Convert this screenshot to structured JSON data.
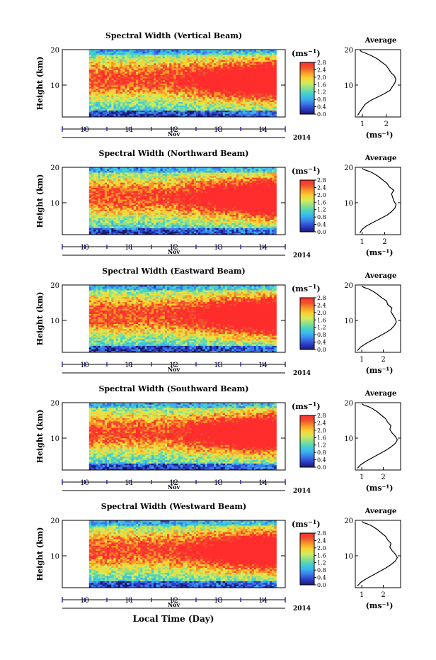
{
  "figure": {
    "xlabel": "Local Time (Day)",
    "month_label": "Nov",
    "year_label": "2014",
    "ylabel": "Height (km)",
    "unit": "(ms",
    "unit_exp": "−1",
    "avg_title": "Average"
  },
  "colors": {
    "scale": [
      "#1a1a6e",
      "#2d3cc8",
      "#3a78e8",
      "#3ab4f0",
      "#46d2c8",
      "#8ce08c",
      "#d2eb5a",
      "#fad232",
      "#fa9628",
      "#f0502d",
      "#ff2d2d"
    ],
    "axis_time": "#2f2fa0"
  },
  "chart_data": [
    {
      "type": "heatmap",
      "title": "Spectral Width (Vertical Beam)",
      "x_ticks": [
        10,
        11,
        12,
        13,
        14
      ],
      "xlim": [
        9.5,
        14.5
      ],
      "data_start": 10.1,
      "data_end": 14.3,
      "y_ticks": [
        10,
        20
      ],
      "ylim": [
        1,
        20
      ],
      "colorbar_ticks": [
        "0.0",
        "0.4",
        "0.8",
        "1.2",
        "1.6",
        "2.0",
        "2.4",
        "2.8"
      ],
      "colorbar_range": [
        0,
        2.8
      ],
      "grid": false
    },
    {
      "type": "line",
      "title": "Average",
      "x_ticks": [
        1,
        2
      ],
      "xlim": [
        0.7,
        2.6
      ],
      "xlabel": "(ms⁻¹)",
      "y_ticks": [
        10,
        20
      ],
      "ylim": [
        1,
        20
      ],
      "series": [
        {
          "x": [
            0.8,
            0.9,
            1.0,
            1.1,
            1.3,
            1.6,
            1.9,
            2.15,
            2.25,
            2.35,
            2.4,
            2.35,
            2.2,
            2.1,
            2.0,
            1.8,
            1.6,
            1.4,
            1.2,
            1.05,
            0.95,
            0.9
          ],
          "y": [
            1.5,
            2.5,
            3.5,
            4.5,
            5.5,
            6.5,
            7.5,
            8.5,
            9.5,
            10.5,
            11.5,
            12.5,
            13.5,
            14.5,
            15.5,
            16.5,
            17.5,
            18.2,
            18.8,
            19.2,
            19.5,
            19.8
          ]
        }
      ]
    },
    {
      "type": "heatmap",
      "title": "Spectral Width (Northward Beam)",
      "x_ticks": [
        10,
        11,
        12,
        13,
        14
      ],
      "xlim": [
        9.5,
        14.5
      ],
      "data_start": 10.1,
      "data_end": 14.3,
      "y_ticks": [
        10,
        20
      ],
      "ylim": [
        1,
        20
      ],
      "colorbar_ticks": [
        "0.0",
        "0.4",
        "0.8",
        "1.2",
        "1.6",
        "2.0",
        "2.4",
        "2.8"
      ],
      "colorbar_range": [
        0,
        2.8
      ],
      "grid": false
    },
    {
      "type": "line",
      "title": "Average",
      "x_ticks": [
        1,
        2
      ],
      "xlim": [
        0.7,
        2.7
      ],
      "xlabel": "(ms⁻¹)",
      "y_ticks": [
        10,
        20
      ],
      "ylim": [
        1,
        20
      ],
      "series": [
        {
          "x": [
            0.9,
            1.0,
            1.2,
            1.5,
            1.8,
            2.1,
            2.3,
            2.45,
            2.5,
            2.4,
            2.35,
            2.3,
            2.4,
            2.2,
            2.1,
            1.9,
            1.7,
            1.5,
            1.3,
            1.1,
            1.0
          ],
          "y": [
            1.5,
            2.5,
            3.5,
            4.5,
            5.5,
            6.5,
            7.5,
            8.5,
            9.5,
            10.5,
            11.5,
            12.5,
            13.5,
            14.5,
            15.5,
            16.5,
            17.5,
            18.3,
            18.9,
            19.3,
            19.7
          ]
        }
      ]
    },
    {
      "type": "heatmap",
      "title": "Spectral Width (Eastward Beam)",
      "x_ticks": [
        10,
        11,
        12,
        13,
        14
      ],
      "xlim": [
        9.5,
        14.5
      ],
      "data_start": 10.1,
      "data_end": 14.3,
      "y_ticks": [
        10,
        20
      ],
      "ylim": [
        1,
        20
      ],
      "colorbar_ticks": [
        "0.0",
        "0.4",
        "0.8",
        "1.2",
        "1.6",
        "2.0",
        "2.4",
        "2.8"
      ],
      "colorbar_range": [
        0,
        2.8
      ],
      "grid": false
    },
    {
      "type": "line",
      "title": "Average",
      "x_ticks": [
        1,
        2
      ],
      "xlim": [
        0.7,
        2.8
      ],
      "xlabel": "(ms⁻¹)",
      "y_ticks": [
        10,
        20
      ],
      "ylim": [
        1,
        20
      ],
      "series": [
        {
          "x": [
            0.8,
            0.95,
            1.2,
            1.5,
            1.8,
            2.1,
            2.35,
            2.5,
            2.6,
            2.55,
            2.45,
            2.35,
            2.4,
            2.2,
            2.15,
            1.9,
            1.7,
            1.5,
            1.3,
            1.1,
            1.0
          ],
          "y": [
            1.5,
            2.5,
            3.5,
            4.5,
            5.5,
            6.5,
            7.5,
            8.5,
            9.5,
            10.5,
            11.5,
            12.5,
            13.5,
            14.5,
            15.5,
            16.5,
            17.5,
            18.3,
            18.9,
            19.3,
            19.7
          ]
        }
      ]
    },
    {
      "type": "heatmap",
      "title": "Spectral Width (Southward Beam)",
      "x_ticks": [
        10,
        11,
        12,
        13,
        14
      ],
      "xlim": [
        9.5,
        14.5
      ],
      "data_start": 10.1,
      "data_end": 14.3,
      "y_ticks": [
        10,
        20
      ],
      "ylim": [
        1,
        20
      ],
      "colorbar_ticks": [
        "0.0",
        "0.4",
        "0.8",
        "1.2",
        "1.6",
        "2.0",
        "2.4",
        "2.8"
      ],
      "colorbar_range": [
        0,
        2.8
      ],
      "grid": false
    },
    {
      "type": "line",
      "title": "Average",
      "x_ticks": [
        1,
        2
      ],
      "xlim": [
        0.7,
        2.8
      ],
      "xlabel": "(ms⁻¹)",
      "y_ticks": [
        10,
        20
      ],
      "ylim": [
        1,
        20
      ],
      "series": [
        {
          "x": [
            0.8,
            0.95,
            1.2,
            1.5,
            1.8,
            2.1,
            2.35,
            2.55,
            2.65,
            2.55,
            2.4,
            2.3,
            2.35,
            2.2,
            2.1,
            1.9,
            1.7,
            1.5,
            1.3,
            1.1,
            1.0
          ],
          "y": [
            1.5,
            2.5,
            3.5,
            4.5,
            5.5,
            6.5,
            7.5,
            8.5,
            9.5,
            10.5,
            11.5,
            12.5,
            13.5,
            14.5,
            15.5,
            16.5,
            17.5,
            18.3,
            18.9,
            19.3,
            19.7
          ]
        }
      ]
    },
    {
      "type": "heatmap",
      "title": "Spectral Width (Westward Beam)",
      "x_ticks": [
        10,
        11,
        12,
        13,
        14
      ],
      "xlim": [
        9.5,
        14.5
      ],
      "data_start": 10.1,
      "data_end": 14.3,
      "y_ticks": [
        10,
        20
      ],
      "ylim": [
        1,
        20
      ],
      "colorbar_ticks": [
        "0.0",
        "0.4",
        "0.8",
        "1.2",
        "1.6",
        "2.0",
        "2.4",
        "2.8"
      ],
      "colorbar_range": [
        0,
        2.8
      ],
      "grid": false
    },
    {
      "type": "line",
      "title": "Average",
      "x_ticks": [
        1,
        2
      ],
      "xlim": [
        0.7,
        2.8
      ],
      "xlabel": "(ms⁻¹)",
      "y_ticks": [
        10,
        20
      ],
      "ylim": [
        1,
        20
      ],
      "series": [
        {
          "x": [
            0.8,
            0.95,
            1.2,
            1.5,
            1.8,
            2.1,
            2.35,
            2.55,
            2.65,
            2.55,
            2.4,
            2.3,
            2.35,
            2.2,
            2.1,
            1.9,
            1.7,
            1.5,
            1.3,
            1.1,
            1.0
          ],
          "y": [
            1.5,
            2.5,
            3.5,
            4.5,
            5.5,
            6.5,
            7.5,
            8.5,
            9.5,
            10.5,
            11.5,
            12.5,
            13.5,
            14.5,
            15.5,
            16.5,
            17.5,
            18.3,
            18.9,
            19.3,
            19.7
          ]
        }
      ]
    }
  ]
}
